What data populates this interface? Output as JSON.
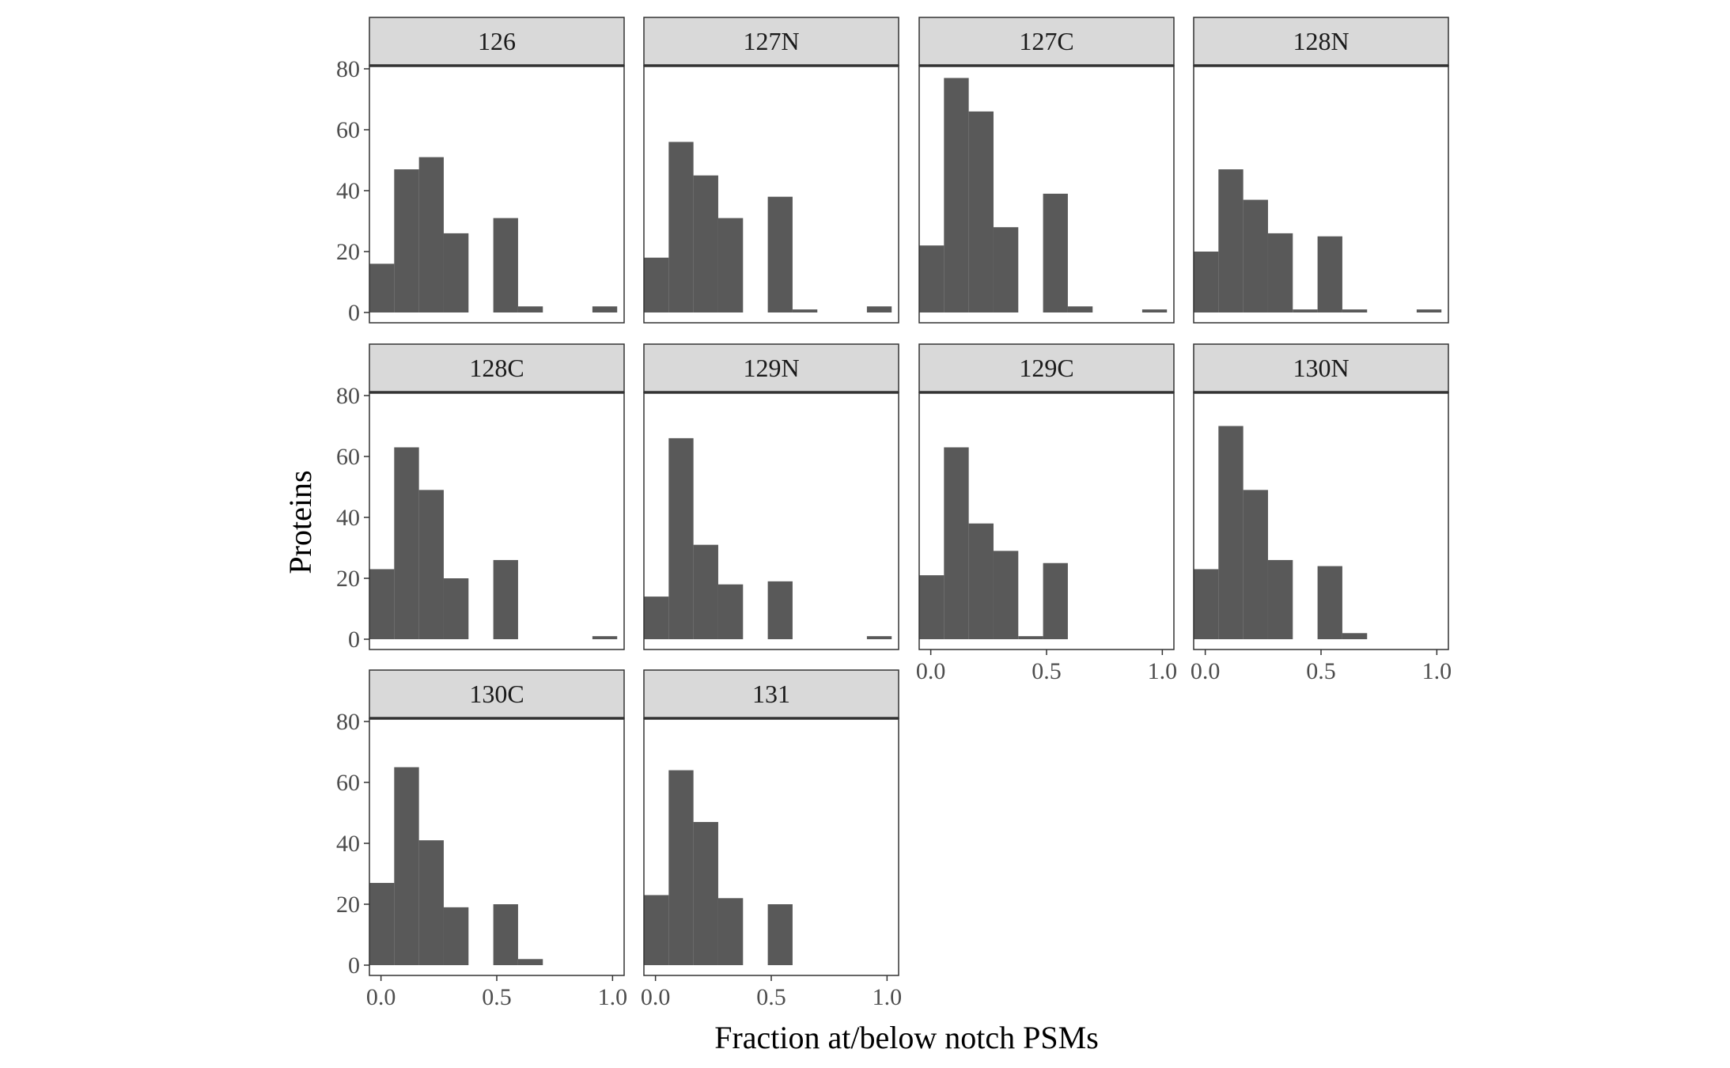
{
  "chart_data": {
    "type": "bar",
    "subtype": "faceted-histogram",
    "xlabel": "Fraction at/below notch PSMs",
    "ylabel": "Proteins",
    "xlim": [
      -0.05,
      1.05
    ],
    "ylim": [
      0,
      80
    ],
    "x_ticks": [
      "0.0",
      "0.5",
      "1.0"
    ],
    "y_ticks": [
      "0",
      "20",
      "40",
      "60",
      "80"
    ],
    "bin_width": 0.107,
    "bin_starts": [
      -0.05,
      0.057,
      0.164,
      0.271,
      0.378,
      0.485,
      0.592,
      0.699,
      0.806,
      0.913
    ],
    "grid": false,
    "legend": "none",
    "colors": {
      "bar": "#595959",
      "strip_fill": "#d9d9d9",
      "panel_border": "#333333"
    },
    "facets": [
      {
        "name": "126",
        "values": [
          16,
          47,
          51,
          26,
          0,
          31,
          2,
          0,
          0,
          2
        ]
      },
      {
        "name": "127N",
        "values": [
          18,
          56,
          45,
          31,
          0,
          38,
          1,
          0,
          0,
          2
        ]
      },
      {
        "name": "127C",
        "values": [
          22,
          77,
          66,
          28,
          0,
          39,
          2,
          0,
          0,
          1
        ]
      },
      {
        "name": "128N",
        "values": [
          20,
          47,
          37,
          26,
          1,
          25,
          1,
          0,
          0,
          1
        ]
      },
      {
        "name": "128C",
        "values": [
          23,
          63,
          49,
          20,
          0,
          26,
          0,
          0,
          0,
          1
        ]
      },
      {
        "name": "129N",
        "values": [
          14,
          66,
          31,
          18,
          0,
          19,
          0,
          0,
          0,
          1
        ]
      },
      {
        "name": "129C",
        "values": [
          21,
          63,
          38,
          29,
          1,
          25,
          0,
          0,
          0,
          0
        ]
      },
      {
        "name": "130N",
        "values": [
          23,
          70,
          49,
          26,
          0,
          24,
          2,
          0,
          0,
          0
        ]
      },
      {
        "name": "130C",
        "values": [
          27,
          65,
          41,
          19,
          0,
          20,
          2,
          0,
          0,
          0
        ]
      },
      {
        "name": "131",
        "values": [
          23,
          64,
          47,
          22,
          0,
          20,
          0,
          0,
          0,
          0
        ]
      }
    ]
  }
}
